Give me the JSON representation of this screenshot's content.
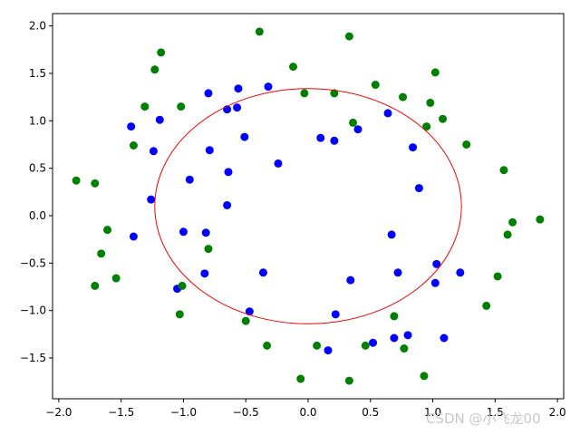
{
  "chart_data": {
    "type": "scatter",
    "xlim": [
      -2.05,
      2.05
    ],
    "ylim": [
      -1.93,
      2.13
    ],
    "x_ticks": [
      -2.0,
      -1.5,
      -1.0,
      -0.5,
      0.0,
      0.5,
      1.0,
      1.5,
      2.0
    ],
    "x_tick_labels": [
      "−2.0",
      "−1.5",
      "−1.0",
      "−0.5",
      "0.0",
      "0.5",
      "1.0",
      "1.5",
      "2.0"
    ],
    "y_ticks": [
      -1.5,
      -1.0,
      -0.5,
      0.0,
      0.5,
      1.0,
      1.5,
      2.0
    ],
    "y_tick_labels": [
      "−1.5",
      "−1.0",
      "−0.5",
      "0.0",
      "0.5",
      "1.0",
      "1.5",
      "2.0"
    ],
    "grid": false,
    "series": [
      {
        "color": "#0000ff",
        "points": [
          [
            -1.42,
            0.94
          ],
          [
            -1.19,
            1.01
          ],
          [
            -0.8,
            1.29
          ],
          [
            -0.56,
            1.34
          ],
          [
            -0.32,
            1.36
          ],
          [
            -0.65,
            1.12
          ],
          [
            -0.57,
            1.14
          ],
          [
            -1.24,
            0.68
          ],
          [
            -0.79,
            0.69
          ],
          [
            -0.51,
            0.83
          ],
          [
            -0.64,
            0.46
          ],
          [
            -0.95,
            0.38
          ],
          [
            -1.26,
            0.17
          ],
          [
            -0.65,
            0.11
          ],
          [
            -0.24,
            0.55
          ],
          [
            -1.4,
            -0.22
          ],
          [
            -1.0,
            -0.17
          ],
          [
            -0.82,
            -0.18
          ],
          [
            -0.83,
            -0.61
          ],
          [
            -1.05,
            -0.77
          ],
          [
            -0.36,
            -0.6
          ],
          [
            -0.47,
            -1.01
          ],
          [
            0.1,
            0.82
          ],
          [
            0.21,
            0.79
          ],
          [
            0.4,
            0.91
          ],
          [
            0.64,
            1.08
          ],
          [
            0.84,
            0.72
          ],
          [
            0.89,
            0.29
          ],
          [
            0.67,
            -0.2
          ],
          [
            0.72,
            -0.6
          ],
          [
            1.03,
            -0.51
          ],
          [
            1.02,
            -0.71
          ],
          [
            1.22,
            -0.6
          ],
          [
            0.34,
            -0.68
          ],
          [
            0.22,
            -1.04
          ],
          [
            0.16,
            -1.42
          ],
          [
            0.52,
            -1.34
          ],
          [
            0.69,
            -1.29
          ],
          [
            0.8,
            -1.26
          ],
          [
            1.09,
            -1.29
          ]
        ]
      },
      {
        "color": "#008000",
        "points": [
          [
            -0.39,
            1.94
          ],
          [
            0.33,
            1.89
          ],
          [
            -1.18,
            1.72
          ],
          [
            -1.23,
            1.54
          ],
          [
            -1.31,
            1.15
          ],
          [
            -1.02,
            1.15
          ],
          [
            -0.12,
            1.57
          ],
          [
            -0.03,
            1.29
          ],
          [
            0.21,
            1.29
          ],
          [
            0.36,
            0.98
          ],
          [
            0.54,
            1.38
          ],
          [
            0.76,
            1.25
          ],
          [
            1.02,
            1.51
          ],
          [
            0.98,
            1.19
          ],
          [
            1.08,
            1.02
          ],
          [
            0.95,
            0.94
          ],
          [
            1.27,
            0.75
          ],
          [
            -1.4,
            0.74
          ],
          [
            -1.86,
            0.37
          ],
          [
            -1.71,
            0.34
          ],
          [
            -1.61,
            -0.15
          ],
          [
            -1.66,
            -0.4
          ],
          [
            -1.71,
            -0.74
          ],
          [
            -1.54,
            -0.66
          ],
          [
            -0.8,
            -0.35
          ],
          [
            -1.01,
            -0.74
          ],
          [
            -1.03,
            -1.04
          ],
          [
            -0.5,
            -1.11
          ],
          [
            -0.33,
            -1.37
          ],
          [
            -0.06,
            -1.72
          ],
          [
            0.07,
            -1.37
          ],
          [
            0.33,
            -1.74
          ],
          [
            0.46,
            -1.37
          ],
          [
            0.69,
            -1.06
          ],
          [
            0.77,
            -1.4
          ],
          [
            0.93,
            -1.69
          ],
          [
            1.57,
            0.48
          ],
          [
            1.6,
            -0.2
          ],
          [
            1.64,
            -0.07
          ],
          [
            1.86,
            -0.04
          ],
          [
            1.52,
            -0.64
          ],
          [
            1.43,
            -0.95
          ]
        ]
      }
    ],
    "curve": {
      "type": "ellipse",
      "color": "#ee0000",
      "center": [
        0.0,
        0.1
      ],
      "radius_x": 1.23,
      "radius_y": 1.24
    }
  },
  "watermark": "CSDN @小飞龙00"
}
